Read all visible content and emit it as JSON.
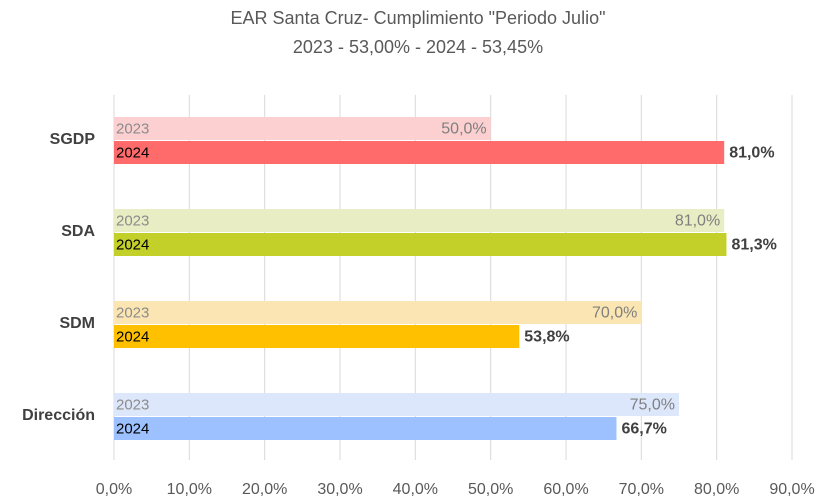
{
  "chart_data": {
    "type": "hbar",
    "title": "EAR Santa Cruz- Cumplimiento \"Periodo Julio\"",
    "subtitle": "2023 - 53,00%  - 2024 - 53,45%",
    "categories": [
      "SGDP",
      "SDA",
      "SDM",
      "Dirección"
    ],
    "series": [
      {
        "name": "2023",
        "colors": [
          "#fcd0d0",
          "#e8edc4",
          "#fbe6b3",
          "#dde7fb"
        ],
        "values": [
          50.0,
          81.0,
          70.0,
          75.0
        ],
        "value_labels": [
          "50,0%",
          "81,0%",
          "70,0%",
          "75,0%"
        ]
      },
      {
        "name": "2024",
        "colors": [
          "#ff6b6b",
          "#c4d02a",
          "#ffc000",
          "#9dc1ff"
        ],
        "values": [
          81.0,
          81.3,
          53.8,
          66.7
        ],
        "value_labels": [
          "81,0%",
          "81,3%",
          "53,8%",
          "66,7%"
        ]
      }
    ],
    "xlim": [
      0,
      90
    ],
    "xticks": [
      {
        "value": 0,
        "label": "0,0%"
      },
      {
        "value": 10,
        "label": "10,0%"
      },
      {
        "value": 20,
        "label": "20,0%"
      },
      {
        "value": 30,
        "label": "30,0%"
      },
      {
        "value": 40,
        "label": "40,0%"
      },
      {
        "value": 50,
        "label": "50,0%"
      },
      {
        "value": 60,
        "label": "60,0%"
      },
      {
        "value": 70,
        "label": "70,0%"
      },
      {
        "value": 80,
        "label": "80,0%"
      },
      {
        "value": 90,
        "label": "90,0%"
      }
    ],
    "grid": true
  }
}
